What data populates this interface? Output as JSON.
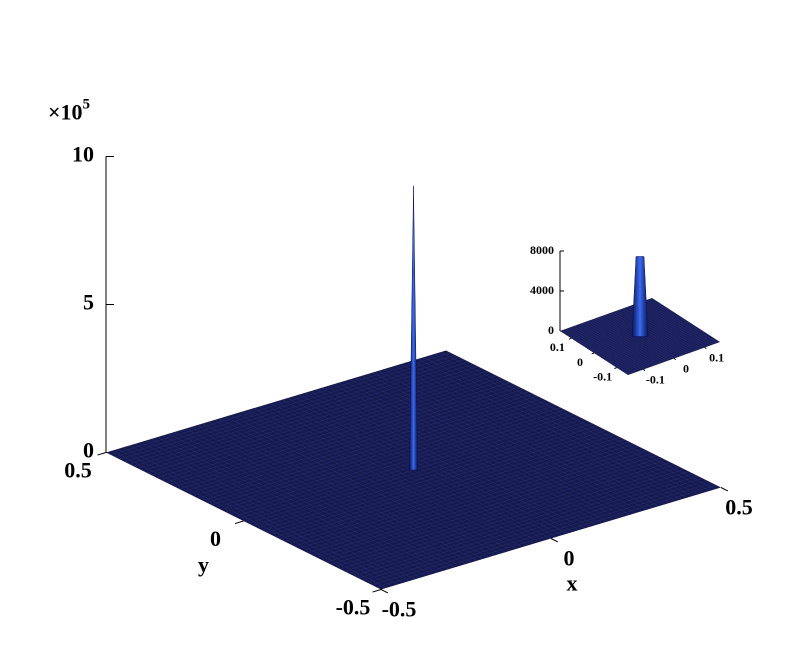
{
  "chart_data": [
    {
      "type": "surface3d",
      "xlabel": "x",
      "ylabel": "y",
      "xlim": [
        -0.5,
        0.5
      ],
      "ylim": [
        -0.5,
        0.5
      ],
      "zlim": [
        0,
        10
      ],
      "xticks": [
        -0.5,
        0,
        0.5
      ],
      "yticks": [
        -0.5,
        0,
        0.5
      ],
      "zticks": [
        0,
        5,
        10
      ],
      "z_multiplier": {
        "base": "×10",
        "exponent": "5"
      },
      "peak": 9.6,
      "color": "#161a4c"
    },
    {
      "type": "surface3d",
      "xlim": [
        -0.15,
        0.15
      ],
      "ylim": [
        -0.15,
        0.15
      ],
      "zlim": [
        0,
        8000
      ],
      "xticks": [
        -0.1,
        0,
        0.1
      ],
      "yticks": [
        -0.1,
        0,
        0.1
      ],
      "zticks": [
        0,
        4000,
        8000
      ],
      "peak": 8000,
      "color": "#161a4c"
    }
  ]
}
